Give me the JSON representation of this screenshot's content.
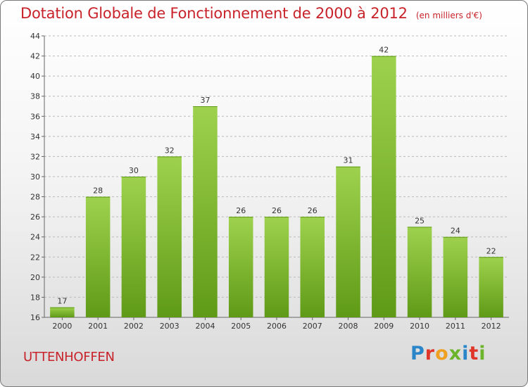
{
  "header": {
    "title": "Dotation Globale de Fonctionnement de 2000 à 2012",
    "subtitle": "(en milliers d'€)"
  },
  "footer": {
    "commune": "UTTENHOFFEN",
    "logo_letters": [
      "P",
      "r",
      "o",
      "x",
      "i",
      "t",
      "i"
    ],
    "logo_colors": [
      "#2a86c8",
      "#e0362a",
      "#f0a020",
      "#6cb42c",
      "#2a86c8",
      "#e0362a",
      "#6cb42c"
    ]
  },
  "chart_data": {
    "type": "bar",
    "title": "Dotation Globale de Fonctionnement de 2000 à 2012",
    "subtitle": "(en milliers d'€)",
    "xlabel": "",
    "ylabel": "",
    "categories": [
      "2000",
      "2001",
      "2002",
      "2003",
      "2004",
      "2005",
      "2006",
      "2007",
      "2008",
      "2009",
      "2010",
      "2011",
      "2012"
    ],
    "values": [
      17,
      28,
      30,
      32,
      37,
      26,
      26,
      26,
      31,
      42,
      25,
      24,
      22
    ],
    "ylim": [
      16,
      44
    ],
    "yticks": [
      16,
      18,
      20,
      22,
      24,
      26,
      28,
      30,
      32,
      34,
      36,
      38,
      40,
      42,
      44
    ],
    "grid": true,
    "colors": {
      "bar_light": "#9ed24e",
      "bar_dark": "#5f9a16",
      "grid": "#bbbbbb",
      "axis": "#666666"
    }
  }
}
